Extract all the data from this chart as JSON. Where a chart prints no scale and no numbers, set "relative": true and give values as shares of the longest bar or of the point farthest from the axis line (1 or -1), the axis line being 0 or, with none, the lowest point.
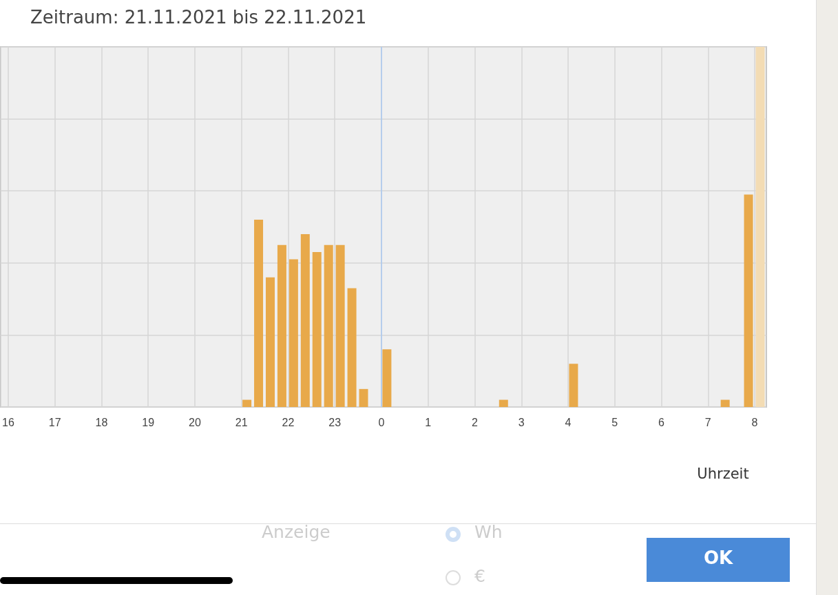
{
  "chart_data": {
    "type": "bar",
    "title": "Zeitraum: 21.11.2021 bis 22.11.2021",
    "xlabel": "Uhrzeit",
    "relative": true,
    "x": [
      "2021-11-21T21:07",
      "2021-11-21T21:22",
      "2021-11-21T21:37",
      "2021-11-21T21:52",
      "2021-11-21T22:07",
      "2021-11-21T22:22",
      "2021-11-21T22:37",
      "2021-11-21T22:52",
      "2021-11-21T23:07",
      "2021-11-21T23:22",
      "2021-11-21T23:37",
      "2021-11-22T00:07",
      "2021-11-22T02:37",
      "2021-11-22T04:07",
      "2021-11-22T07:22",
      "2021-11-22T07:52",
      "2021-11-22T08:07"
    ],
    "values": [
      0.02,
      0.52,
      0.36,
      0.45,
      0.41,
      0.48,
      0.43,
      0.45,
      0.45,
      0.33,
      0.05,
      0.16,
      0.02,
      0.12,
      0.02,
      0.59,
      1
    ],
    "colors": [
      "#e8a94a",
      "#e8a94a",
      "#e8a94a",
      "#e8a94a",
      "#e8a94a",
      "#e8a94a",
      "#e8a94a",
      "#e8a94a",
      "#e8a94a",
      "#e8a94a",
      "#e8a94a",
      "#e8a94a",
      "#e8a94a",
      "#e8a94a",
      "#e8a94a",
      "#e8a94a",
      "#f3dcb4"
    ],
    "xlim": [
      "2021-11-21T15:50",
      "2021-11-22T08:15"
    ],
    "xticks": [
      {
        "value": "2021-11-21T16:00",
        "label": "16"
      },
      {
        "value": "2021-11-21T17:00",
        "label": "17"
      },
      {
        "value": "2021-11-21T18:00",
        "label": "18"
      },
      {
        "value": "2021-11-21T19:00",
        "label": "19"
      },
      {
        "value": "2021-11-21T20:00",
        "label": "20"
      },
      {
        "value": "2021-11-21T21:00",
        "label": "21"
      },
      {
        "value": "2021-11-21T22:00",
        "label": "22"
      },
      {
        "value": "2021-11-21T23:00",
        "label": "23"
      },
      {
        "value": "2021-11-22T00:00",
        "label": "0"
      },
      {
        "value": "2021-11-22T01:00",
        "label": "1"
      },
      {
        "value": "2021-11-22T02:00",
        "label": "2"
      },
      {
        "value": "2021-11-22T03:00",
        "label": "3"
      },
      {
        "value": "2021-11-22T04:00",
        "label": "4"
      },
      {
        "value": "2021-11-22T05:00",
        "label": "5"
      },
      {
        "value": "2021-11-22T06:00",
        "label": "6"
      },
      {
        "value": "2021-11-22T07:00",
        "label": "7"
      },
      {
        "value": "2021-11-22T08:00",
        "label": "8"
      }
    ],
    "grid": true,
    "ref_lines": [
      {
        "axis": "x",
        "value": "2021-11-22T00:00",
        "color": "#a9c9f2"
      }
    ],
    "annotations": [
      "Anzeige",
      "Wh",
      "€",
      "OK"
    ]
  }
}
